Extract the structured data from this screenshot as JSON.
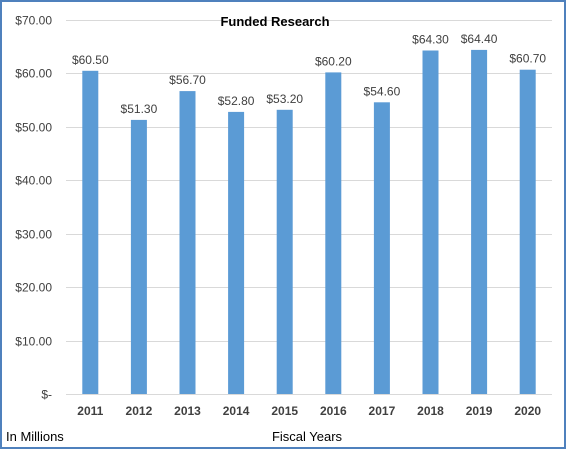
{
  "chart_data": {
    "type": "bar",
    "title": "Funded Research",
    "categories": [
      "2011",
      "2012",
      "2013",
      "2014",
      "2015",
      "2016",
      "2017",
      "2018",
      "2019",
      "2020"
    ],
    "values": [
      60.5,
      51.3,
      56.7,
      52.8,
      53.2,
      60.2,
      54.6,
      64.3,
      64.4,
      60.7
    ],
    "data_labels": [
      "$60.50",
      "$51.30",
      "$56.70",
      "$52.80",
      "$53.20",
      "$60.20",
      "$54.60",
      "$64.30",
      "$64.40",
      "$60.70"
    ],
    "ylim": [
      0,
      70
    ],
    "y_ticks": [
      0,
      10,
      20,
      30,
      40,
      50,
      60,
      70
    ],
    "y_tick_labels": [
      "$-",
      "$10.00",
      "$20.00",
      "$30.00",
      "$40.00",
      "$50.00",
      "$60.00",
      "$70.00"
    ],
    "xlabel": "Fiscal Years",
    "ylabel": "In Millions",
    "grid": true,
    "legend": "none",
    "colors": {
      "bar": "#5b9bd5",
      "grid": "#d9d9d9",
      "border": "#4f81bd"
    }
  }
}
